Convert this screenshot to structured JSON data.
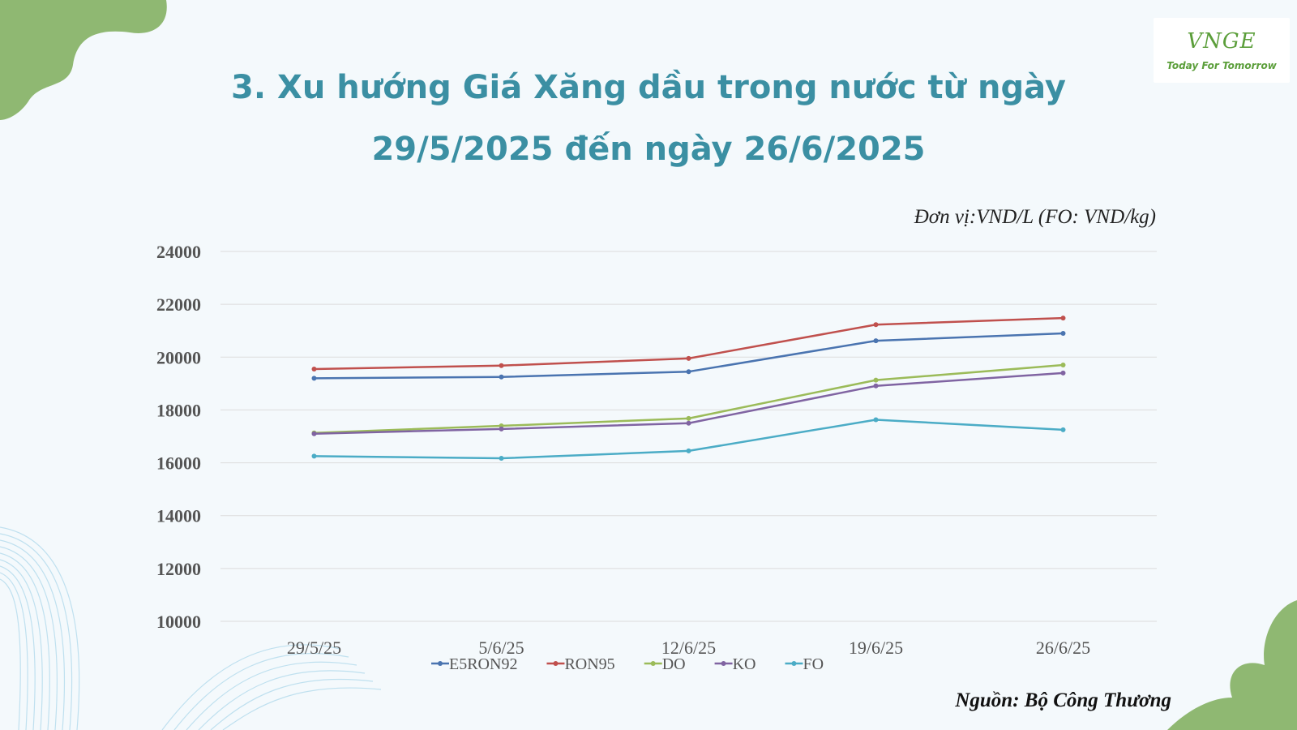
{
  "title_lines": [
    "3. Xu hướng Giá Xăng dầu trong nước từ ngày",
    "29/5/2025 đến ngày 26/6/2025"
  ],
  "unit_note": "Đơn vị:VND/L (FO: VND/kg)",
  "source_note": "Nguồn: Bộ Công Thương",
  "logo": {
    "mark": "VNGE",
    "tagline": "Today For Tomorrow"
  },
  "colors": {
    "title": "#3b8fa3",
    "brand_green": "#5b9e3a",
    "decor_green": "#8fb872"
  },
  "chart_data": {
    "type": "line",
    "categories": [
      "29/5/25",
      "5/6/25",
      "12/6/25",
      "19/6/25",
      "26/6/25"
    ],
    "ylim": [
      10000,
      24000
    ],
    "yticks": [
      10000,
      12000,
      14000,
      16000,
      18000,
      20000,
      22000,
      24000
    ],
    "grid": true,
    "legend_position": "bottom",
    "series": [
      {
        "name": "E5RON92",
        "color": "#4a74b0",
        "values": [
          19200,
          19250,
          19450,
          20620,
          20900
        ]
      },
      {
        "name": "RON95",
        "color": "#c0504d",
        "values": [
          19550,
          19680,
          19950,
          21230,
          21480
        ]
      },
      {
        "name": "DO",
        "color": "#9bbb59",
        "values": [
          17130,
          17400,
          17680,
          19130,
          19700
        ]
      },
      {
        "name": "KO",
        "color": "#8064a2",
        "values": [
          17100,
          17280,
          17500,
          18910,
          19400
        ]
      },
      {
        "name": "FO",
        "color": "#4bacc6",
        "values": [
          16250,
          16170,
          16450,
          17630,
          17250
        ]
      }
    ]
  }
}
